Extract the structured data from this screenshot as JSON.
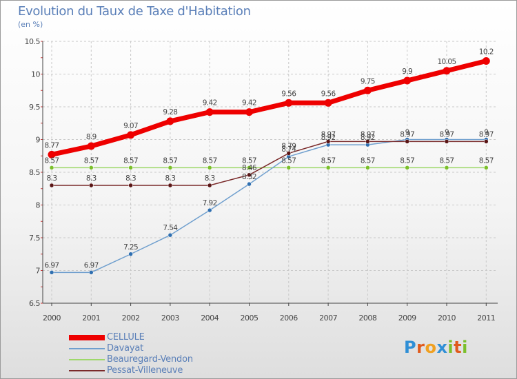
{
  "header": {
    "title": "Evolution du Taux de Taxe d'Habitation",
    "subtitle": "(en %)"
  },
  "logo": {
    "letters": [
      "P",
      "r",
      "o",
      "x",
      "i",
      "t",
      "i"
    ],
    "colors": [
      "#2f8fd6",
      "#e05a1c",
      "#f0a020",
      "#2f8fd6",
      "#7bbf2a",
      "#e05a1c",
      "#7bbf2a"
    ]
  },
  "chart_data": {
    "type": "line",
    "x": [
      2000,
      2001,
      2002,
      2003,
      2004,
      2005,
      2006,
      2007,
      2008,
      2009,
      2010,
      2011
    ],
    "ylim": [
      6.5,
      10.5
    ],
    "yticks": [
      6.5,
      7,
      7.5,
      8,
      8.5,
      9,
      9.5,
      10,
      10.5
    ],
    "grid": true,
    "legend_position": "bottom-left",
    "series": [
      {
        "name": "CELLULE",
        "color": "#ee0000",
        "values": [
          8.77,
          8.9,
          9.07,
          9.28,
          9.42,
          9.42,
          9.56,
          9.56,
          9.75,
          9.9,
          10.05,
          10.2
        ],
        "labels": [
          "8.77",
          "8.9",
          "9.07",
          "9.28",
          "9.42",
          "9.42",
          "9.56",
          "9.56",
          "9.75",
          "9.9",
          "10.05",
          "10.2"
        ]
      },
      {
        "name": "Davayat",
        "color": "#6f9fce",
        "values": [
          6.97,
          6.97,
          7.25,
          7.54,
          7.92,
          8.32,
          8.74,
          8.92,
          8.92,
          9.0,
          9.0,
          9.0
        ],
        "labels": [
          "6.97",
          "6.97",
          "7.25",
          "7.54",
          "7.92",
          "8.32",
          "8.74",
          "8.92",
          "8.92",
          "9",
          "9",
          "9"
        ]
      },
      {
        "name": "Beauregard-Vendon",
        "color": "#9ed86a",
        "values": [
          8.57,
          8.57,
          8.57,
          8.57,
          8.57,
          8.57,
          8.57,
          8.57,
          8.57,
          8.57,
          8.57,
          8.57
        ],
        "labels": [
          "8.57",
          "8.57",
          "8.57",
          "8.57",
          "8.57",
          "8.57",
          "8.57",
          "8.57",
          "8.57",
          "8.57",
          "8.57",
          "8.57"
        ]
      },
      {
        "name": "Pessat-Villeneuve",
        "color": "#7a2a2a",
        "values": [
          8.3,
          8.3,
          8.3,
          8.3,
          8.3,
          8.46,
          8.79,
          8.97,
          8.97,
          8.97,
          8.97,
          8.97
        ],
        "labels": [
          "8.3",
          "8.3",
          "8.3",
          "8.3",
          "8.3",
          "8.46",
          "8.79",
          "8.97",
          "8.97",
          "8.97",
          "8.97",
          "8.97"
        ]
      }
    ]
  }
}
